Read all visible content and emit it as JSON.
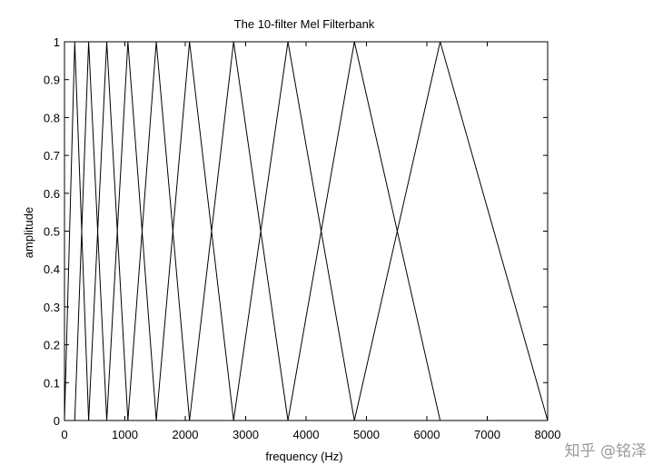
{
  "chart_data": {
    "type": "line",
    "title": "The 10-filter Mel Filterbank",
    "xlabel": "frequency (Hz)",
    "ylabel": "amplitude",
    "xlim": [
      0,
      8000
    ],
    "ylim": [
      0,
      1
    ],
    "x_ticks": [
      "0",
      "1000",
      "2000",
      "3000",
      "4000",
      "5000",
      "6000",
      "7000",
      "8000"
    ],
    "y_ticks": [
      "0",
      "0.1",
      "0.2",
      "0.3",
      "0.4",
      "0.5",
      "0.6",
      "0.7",
      "0.8",
      "0.9",
      "1"
    ],
    "grid": false,
    "line_color": "#000000",
    "filter_edges_hz": [
      0,
      170,
      400,
      700,
      1050,
      1520,
      2070,
      2800,
      3700,
      4800,
      6220,
      8000
    ],
    "filters": [
      {
        "x": [
          0,
          170,
          400
        ],
        "y": [
          0,
          1,
          0
        ]
      },
      {
        "x": [
          170,
          400,
          700
        ],
        "y": [
          0,
          1,
          0
        ]
      },
      {
        "x": [
          400,
          700,
          1050
        ],
        "y": [
          0,
          1,
          0
        ]
      },
      {
        "x": [
          700,
          1050,
          1520
        ],
        "y": [
          0,
          1,
          0
        ]
      },
      {
        "x": [
          1050,
          1520,
          2070
        ],
        "y": [
          0,
          1,
          0
        ]
      },
      {
        "x": [
          1520,
          2070,
          2800
        ],
        "y": [
          0,
          1,
          0
        ]
      },
      {
        "x": [
          2070,
          2800,
          3700
        ],
        "y": [
          0,
          1,
          0
        ]
      },
      {
        "x": [
          2800,
          3700,
          4800
        ],
        "y": [
          0,
          1,
          0
        ]
      },
      {
        "x": [
          3700,
          4800,
          6220
        ],
        "y": [
          0,
          1,
          0
        ]
      },
      {
        "x": [
          4800,
          6220,
          8000
        ],
        "y": [
          0,
          1,
          0
        ]
      }
    ]
  },
  "watermark": "知乎 @铭泽"
}
